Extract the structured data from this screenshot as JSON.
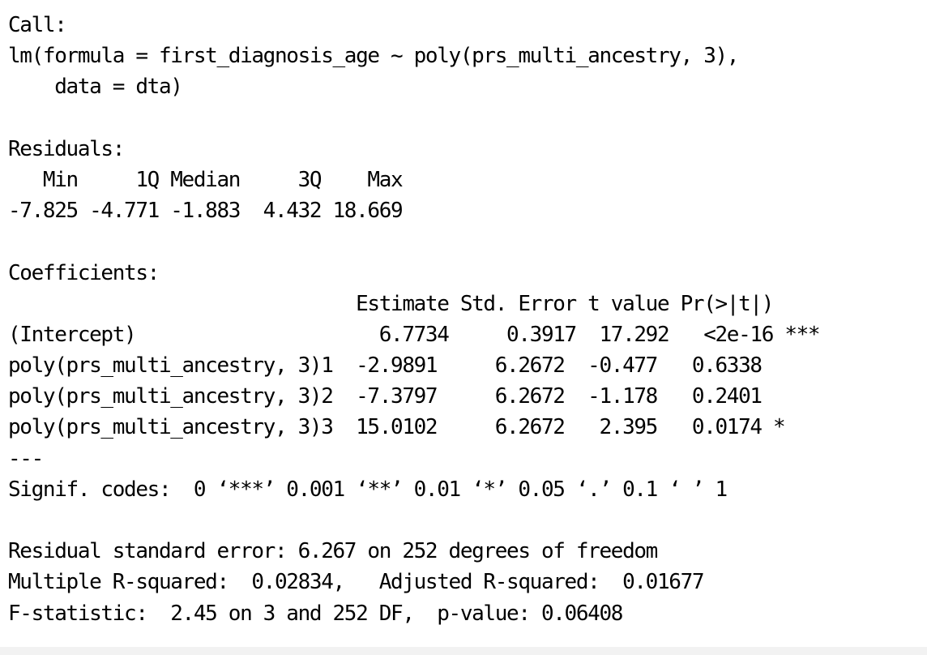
{
  "output": {
    "call_header": "Call:",
    "call_line1": "lm(formula = first_diagnosis_age ~ poly(prs_multi_ancestry, 3),",
    "call_line2": "    data = dta)",
    "residuals_header": "Residuals:",
    "residuals_labels": "   Min     1Q Median     3Q    Max ",
    "residuals_values": "-7.825 -4.771 -1.883  4.432 18.669 ",
    "coefficients_header": "Coefficients:",
    "coef_col_headers": "                              Estimate Std. Error t value Pr(>|t|)    ",
    "coef_rows": [
      "(Intercept)                     6.7734     0.3917  17.292   <2e-16 ***",
      "poly(prs_multi_ancestry, 3)1  -2.9891     6.2672  -0.477   0.6338    ",
      "poly(prs_multi_ancestry, 3)2  -7.3797     6.2672  -1.178   0.2401    ",
      "poly(prs_multi_ancestry, 3)3  15.0102     6.2672   2.395   0.0174 *  "
    ],
    "separator": "---",
    "signif_codes": "Signif. codes:  0 ‘***’ 0.001 ‘**’ 0.01 ‘*’ 0.05 ‘.’ 0.1 ‘ ’ 1",
    "rse": "Residual standard error: 6.267 on 252 degrees of freedom",
    "r_squared": "Multiple R-squared:  0.02834,\tAdjusted R-squared:  0.01677 ",
    "f_statistic": "F-statistic:  2.45 on 3 and 252 DF,  p-value: 0.06408"
  }
}
